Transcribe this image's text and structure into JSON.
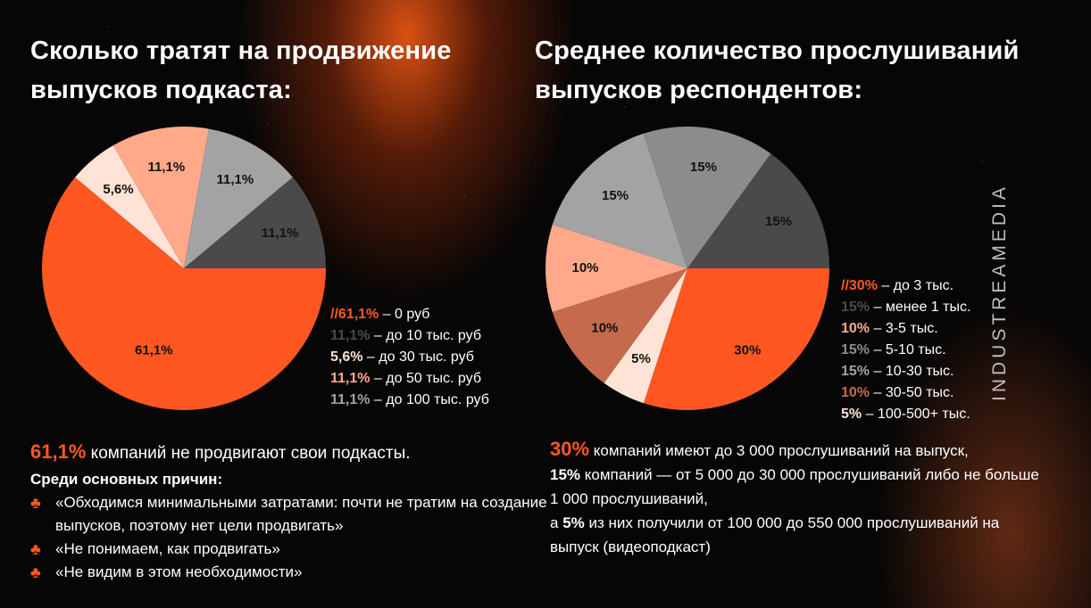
{
  "left": {
    "title": "Сколько тратят на продвижение выпусков подкаста:",
    "legend": [
      {
        "prefix": "//",
        "pct": "61,1%",
        "desc": " – 0 руб",
        "color": "#ff5722"
      },
      {
        "prefix": "",
        "pct": "11,1%",
        "desc": " – до 10 тыс. руб",
        "color": "#4a4a4a"
      },
      {
        "prefix": "",
        "pct": "5,6%",
        "desc": " – до 30 тыс. руб",
        "color": "#ffe3d6"
      },
      {
        "prefix": "",
        "pct": "11,1%",
        "desc": " – до 50 тыс. руб",
        "color": "#ffa98a"
      },
      {
        "prefix": "",
        "pct": "11,1%",
        "desc": " – до 100 тыс. руб",
        "color": "#a3a3a3"
      }
    ],
    "summary": {
      "highlight": "61,1%",
      "text": " компаний не продвигают свои подкасты."
    },
    "reasons_title": "Среди основных причин:",
    "reasons": [
      "«Обходимся минимальными затратами: почти не тратим на создание выпусков, поэтому нет цели продвигать»",
      "«Не понимаем, как продвигать»",
      "«Не видим в этом необходимости»"
    ],
    "bullet_icon": "club-icon"
  },
  "right": {
    "title": "Среднее количество прослушиваний выпусков респондентов:",
    "legend": [
      {
        "prefix": "//",
        "pct": "30%",
        "desc": " – до 3 тыс.",
        "color": "#ff5722"
      },
      {
        "prefix": "",
        "pct": "15%",
        "desc": " – менее 1 тыс.",
        "color": "#4a4a4a"
      },
      {
        "prefix": "",
        "pct": "10%",
        "desc": " – 3-5 тыс.",
        "color": "#ffa98a"
      },
      {
        "prefix": "",
        "pct": "15%",
        "desc": " – 5-10 тыс.",
        "color": "#8c8c8c"
      },
      {
        "prefix": "",
        "pct": "15%",
        "desc": " – 10-30 тыс.",
        "color": "#a3a3a3"
      },
      {
        "prefix": "",
        "pct": "10%",
        "desc": " – 30-50 тыс.",
        "color": "#c56a4c"
      },
      {
        "prefix": "",
        "pct": "5%",
        "desc": " – 100-500+ тыс.",
        "color": "#ffe3d6"
      }
    ],
    "text": {
      "p1_hl": "30%",
      "p1": " компаний имеют до 3 000 прослушиваний на выпуск,",
      "p2_b": "15%",
      "p2": " компаний — от 5 000 до 30 000 прослушиваний либо не больше 1 000 прослушиваний,",
      "p3_pre": "а ",
      "p3_b": "5%",
      "p3": " из них получили от 100 000 до 550 000 прослушиваний на выпуск (видеоподкаст)"
    }
  },
  "brand": "INDUSTREAMEDIA",
  "colors": {
    "accent": "#ff5722",
    "background": "#060606"
  },
  "chart_data": [
    {
      "type": "pie",
      "title": "Сколько тратят на продвижение выпусков подкаста:",
      "slices": [
        {
          "label": "0 руб",
          "value": 61.1,
          "display": "61,1%",
          "color": "#ff5722"
        },
        {
          "label": "до 30 тыс. руб",
          "value": 5.6,
          "display": "5,6%",
          "color": "#ffe3d6"
        },
        {
          "label": "до 50 тыс. руб",
          "value": 11.1,
          "display": "11,1%",
          "color": "#ffa98a"
        },
        {
          "label": "до 100 тыс. руб",
          "value": 11.1,
          "display": "11,1%",
          "color": "#a3a3a3"
        },
        {
          "label": "до 10 тыс. руб",
          "value": 11.1,
          "display": "11,1%",
          "color": "#4a4a4a"
        }
      ]
    },
    {
      "type": "pie",
      "title": "Среднее количество прослушиваний выпусков респондентов:",
      "slices": [
        {
          "label": "до 3 тыс.",
          "value": 30,
          "display": "30%",
          "color": "#ff5722"
        },
        {
          "label": "100-500+ тыс.",
          "value": 5,
          "display": "5%",
          "color": "#ffe3d6"
        },
        {
          "label": "30-50 тыс.",
          "value": 10,
          "display": "10%",
          "color": "#c56a4c"
        },
        {
          "label": "3-5 тыс.",
          "value": 10,
          "display": "10%",
          "color": "#ffa98a"
        },
        {
          "label": "10-30 тыс.",
          "value": 15,
          "display": "15%",
          "color": "#a3a3a3"
        },
        {
          "label": "5-10 тыс.",
          "value": 15,
          "display": "15%",
          "color": "#8c8c8c"
        },
        {
          "label": "менее 1 тыс.",
          "value": 15,
          "display": "15%",
          "color": "#4a4a4a"
        }
      ]
    }
  ]
}
